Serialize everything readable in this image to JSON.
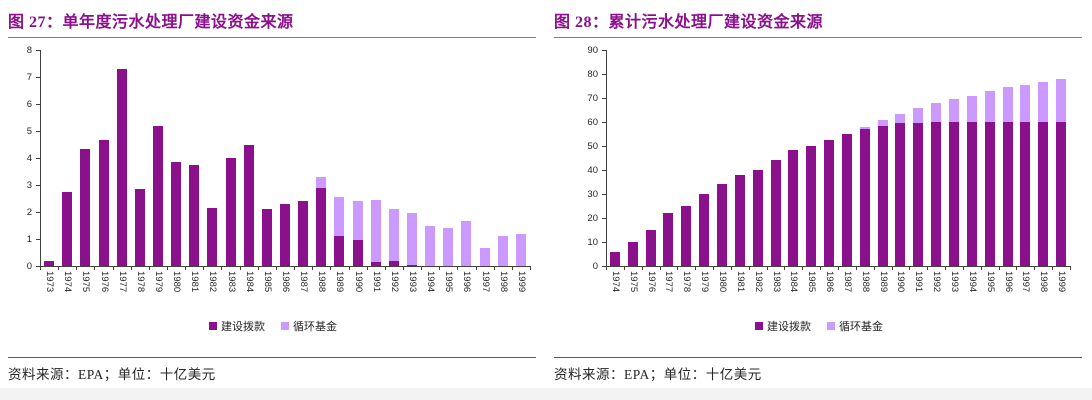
{
  "colors": {
    "series_dark": "#8B118C",
    "series_light": "#CC99FF",
    "title_text": "#8B108C",
    "rule_line": "#7f7f7f",
    "axis_line": "#404040",
    "tick_text": "#262626",
    "bottom_strip": "#f3f3f3"
  },
  "figures": [
    {
      "title": "图 27：单年度污水处理厂建设资金来源",
      "source": "资料来源：EPA；单位：十亿美元"
    },
    {
      "title": "图 28：累计污水处理厂建设资金来源",
      "source": "资料来源：EPA；单位：十亿美元"
    }
  ],
  "chart_data": [
    {
      "type": "bar",
      "stacked": true,
      "title": "单年度污水处理厂建设资金来源",
      "unit": "十亿美元",
      "categories": [
        "1973",
        "1974",
        "1975",
        "1976",
        "1977",
        "1978",
        "1979",
        "1980",
        "1981",
        "1982",
        "1983",
        "1984",
        "1985",
        "1986",
        "1987",
        "1988",
        "1989",
        "1990",
        "1991",
        "1992",
        "1993",
        "1994",
        "1995",
        "1996",
        "1997",
        "1998",
        "1999"
      ],
      "series": [
        {
          "name": "建设拨款",
          "values": [
            0.2,
            2.75,
            4.35,
            4.65,
            7.3,
            2.85,
            5.2,
            3.85,
            3.75,
            2.15,
            4.0,
            4.5,
            2.1,
            2.3,
            2.4,
            2.9,
            1.1,
            0.95,
            0.15,
            0.2,
            0.05,
            0,
            0,
            0,
            0,
            0,
            0
          ]
        },
        {
          "name": "循环基金",
          "values": [
            0,
            0,
            0,
            0,
            0,
            0,
            0,
            0,
            0,
            0,
            0,
            0,
            0,
            0,
            0,
            0.4,
            1.45,
            1.45,
            2.3,
            1.9,
            1.9,
            1.5,
            1.4,
            1.65,
            0.65,
            1.1,
            1.2
          ]
        }
      ],
      "ylim": [
        0,
        8
      ],
      "ytick_step": 1,
      "grid": false,
      "legend_position": "bottom"
    },
    {
      "type": "bar",
      "stacked": true,
      "title": "累计污水处理厂建设资金来源",
      "unit": "十亿美元",
      "categories": [
        "1974",
        "1975",
        "1976",
        "1977",
        "1978",
        "1979",
        "1980",
        "1981",
        "1982",
        "1983",
        "1984",
        "1985",
        "1986",
        "1987",
        "1988",
        "1989",
        "1990",
        "1991",
        "1992",
        "1993",
        "1994",
        "1995",
        "1996",
        "1997",
        "1998",
        "1999"
      ],
      "series": [
        {
          "name": "建设拨款",
          "values": [
            6,
            10,
            15,
            22,
            25,
            30,
            34,
            38,
            40,
            44,
            48.5,
            50,
            52.5,
            55,
            57,
            58.5,
            59.5,
            59.5,
            60,
            60,
            60,
            60,
            60,
            60,
            60,
            60
          ]
        },
        {
          "name": "循环基金",
          "values": [
            0,
            0,
            0,
            0,
            0,
            0,
            0,
            0,
            0,
            0,
            0,
            0,
            0,
            0,
            1,
            2.5,
            4,
            6.5,
            8,
            9.5,
            11,
            13,
            14.5,
            15.5,
            16.5,
            18
          ]
        }
      ],
      "ylim": [
        0,
        90
      ],
      "ytick_step": 10,
      "grid": false,
      "legend_position": "bottom"
    }
  ]
}
